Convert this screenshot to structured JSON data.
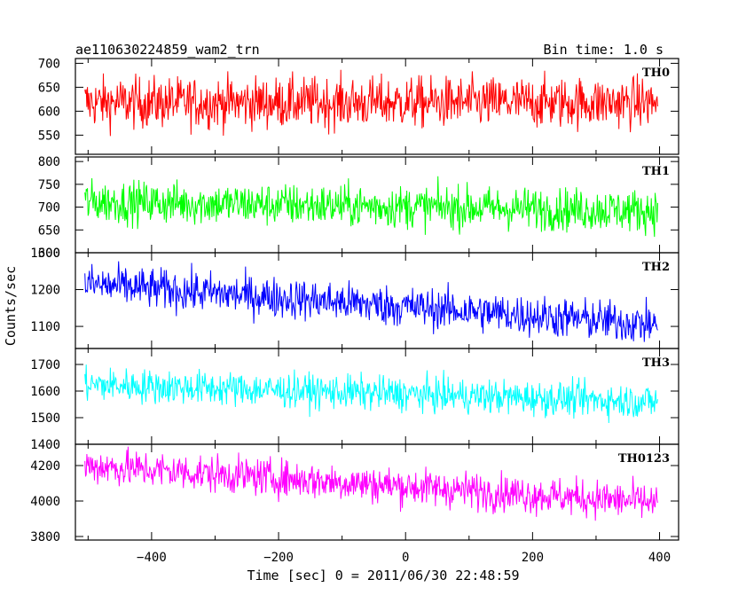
{
  "chart_data": {
    "type": "line",
    "title_left": "ae110630224859_wam2_trn",
    "title_right": "Bin time: 1.0 s",
    "xlabel": "Time [sec] 0 = 2011/06/30 22:48:59",
    "ylabel": "Counts/sec",
    "xlim": [
      -520,
      430
    ],
    "xticks": [
      -400,
      -200,
      0,
      200,
      400
    ],
    "x_start": -505,
    "x_end": 397,
    "panels": [
      {
        "name": "TH0",
        "color": "#ff0000",
        "ylim": [
          510,
          710
        ],
        "yticks": [
          550,
          600,
          650,
          700
        ],
        "mean_start": 618,
        "mean_end": 618,
        "spread": 48
      },
      {
        "name": "TH1",
        "color": "#00ff00",
        "ylim": [
          600,
          810
        ],
        "yticks": [
          600,
          650,
          700,
          750,
          800
        ],
        "mean_start": 712,
        "mean_end": 692,
        "spread": 42
      },
      {
        "name": "TH2",
        "color": "#0000ff",
        "ylim": [
          1040,
          1300
        ],
        "yticks": [
          1100,
          1200,
          1300
        ],
        "mean_start": 1215,
        "mean_end": 1105,
        "spread": 50
      },
      {
        "name": "TH3",
        "color": "#00ffff",
        "ylim": [
          1400,
          1760
        ],
        "yticks": [
          1400,
          1500,
          1600,
          1700
        ],
        "mean_start": 1625,
        "mean_end": 1560,
        "spread": 58
      },
      {
        "name": "TH0123",
        "color": "#ff00ff",
        "ylim": [
          3780,
          4320
        ],
        "yticks": [
          3800,
          4000,
          4200
        ],
        "mean_start": 4200,
        "mean_end": 3990,
        "spread": 95
      }
    ]
  }
}
